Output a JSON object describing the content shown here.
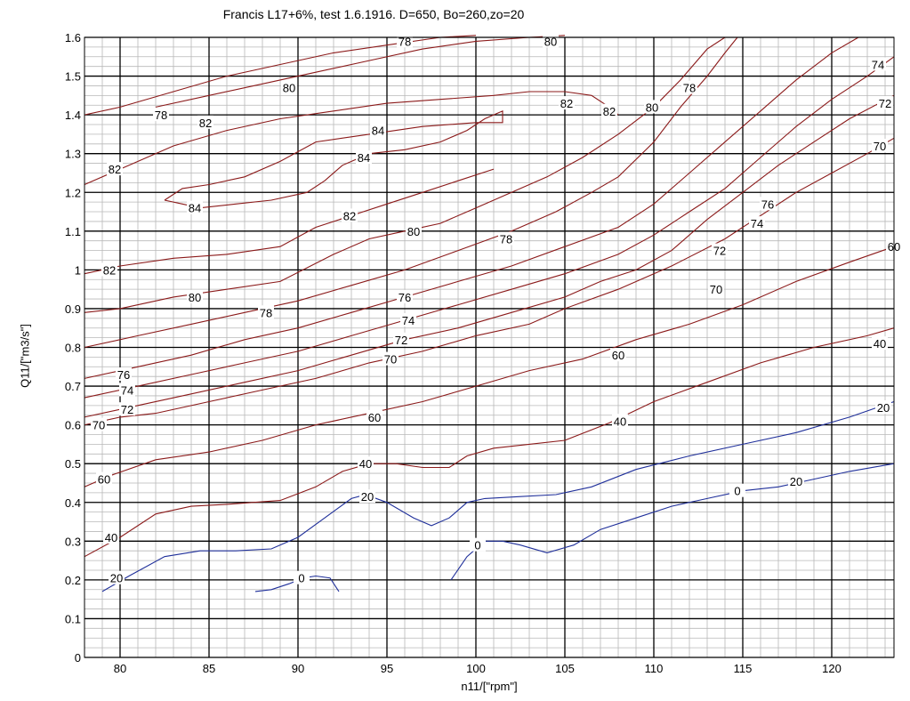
{
  "chart_data": {
    "type": "line",
    "title": "Francis L17+6%, test 1.6.1916. D=650, Bo=260,zo=20",
    "xlabel": "n11/[\"rpm\"]",
    "ylabel": "Q11/[\"m3/s\"]",
    "xlim": [
      78,
      123.5
    ],
    "ylim": [
      0,
      1.6
    ],
    "xticks": [
      80,
      85,
      90,
      95,
      100,
      105,
      110,
      115,
      120
    ],
    "yticks": [
      0,
      0.1,
      0.2,
      0.3,
      0.4,
      0.5,
      0.6,
      0.7,
      0.8,
      0.9,
      1,
      1.1,
      1.2,
      1.3,
      1.4,
      1.5,
      1.6
    ],
    "grid": "major and minor",
    "colors": {
      "efficiency": "#8b1a1a",
      "low": "#1f2f9a"
    },
    "series": [
      {
        "name": "0",
        "color": "#1f2f9a",
        "labels": [
          [
            90.2,
            0.205
          ]
        ],
        "x": [
          87.6,
          88.5,
          89.5,
          90.3,
          91.0,
          91.8,
          92.3
        ],
        "y": [
          0.17,
          0.175,
          0.19,
          0.205,
          0.21,
          0.205,
          0.17
        ]
      },
      {
        "name": "0",
        "color": "#1f2f9a",
        "labels": [
          [
            100.1,
            0.29
          ],
          [
            114.7,
            0.43
          ]
        ],
        "x": [
          98.6,
          99.5,
          100.5,
          101.5,
          102.5,
          104.0,
          105.5,
          107.0,
          109.0,
          111.0,
          113.0,
          115.0,
          117.0,
          119.0,
          121.0,
          123.5
        ],
        "y": [
          0.2,
          0.26,
          0.3,
          0.3,
          0.29,
          0.27,
          0.29,
          0.33,
          0.36,
          0.39,
          0.41,
          0.43,
          0.44,
          0.46,
          0.48,
          0.5
        ]
      },
      {
        "name": "20",
        "color": "#1f2f9a",
        "labels": [
          [
            79.8,
            0.205
          ],
          [
            93.9,
            0.415
          ],
          [
            118.0,
            0.455
          ],
          [
            122.9,
            0.645
          ]
        ],
        "x": [
          79.0,
          80.5,
          82.5,
          84.5,
          86.5,
          88.5,
          90.0,
          91.5,
          93.0,
          93.8,
          95.0,
          96.5,
          97.5,
          98.5,
          99.5,
          100.5,
          102.5,
          104.5,
          106.5,
          109.0,
          112.0,
          115.0,
          118.0,
          121.0,
          123.5
        ],
        "y": [
          0.17,
          0.21,
          0.26,
          0.275,
          0.275,
          0.28,
          0.31,
          0.36,
          0.41,
          0.42,
          0.4,
          0.36,
          0.34,
          0.36,
          0.4,
          0.41,
          0.415,
          0.42,
          0.44,
          0.485,
          0.52,
          0.55,
          0.58,
          0.62,
          0.66
        ]
      },
      {
        "name": "40",
        "color": "#8b1a1a",
        "labels": [
          [
            79.5,
            0.31
          ],
          [
            93.8,
            0.5
          ],
          [
            108.1,
            0.61
          ],
          [
            122.7,
            0.81
          ]
        ],
        "x": [
          78.0,
          80.0,
          82.0,
          84.0,
          86.0,
          89.0,
          91.0,
          92.5,
          94.0,
          95.5,
          97.0,
          98.5,
          99.5,
          101.0,
          103.0,
          105.0,
          107.5,
          110.0,
          113.0,
          116.0,
          119.0,
          122.0,
          123.5
        ],
        "y": [
          0.26,
          0.31,
          0.37,
          0.39,
          0.395,
          0.405,
          0.44,
          0.48,
          0.5,
          0.5,
          0.49,
          0.49,
          0.52,
          0.54,
          0.55,
          0.56,
          0.605,
          0.66,
          0.71,
          0.76,
          0.8,
          0.83,
          0.85
        ]
      },
      {
        "name": "60",
        "color": "#8b1a1a",
        "labels": [
          [
            79.1,
            0.46
          ],
          [
            94.3,
            0.62
          ],
          [
            108.0,
            0.78
          ],
          [
            123.5,
            1.06
          ]
        ],
        "x": [
          78.0,
          79.5,
          82.0,
          85.0,
          88.0,
          91.0,
          94.0,
          97.0,
          100.0,
          103.0,
          106.0,
          109.0,
          112.0,
          115.0,
          118.0,
          121.0,
          123.5
        ],
        "y": [
          0.44,
          0.47,
          0.51,
          0.53,
          0.56,
          0.6,
          0.63,
          0.66,
          0.7,
          0.74,
          0.77,
          0.82,
          0.86,
          0.91,
          0.97,
          1.02,
          1.06
        ]
      },
      {
        "name": "70",
        "color": "#8b1a1a",
        "labels": [
          [
            78.8,
            0.6
          ],
          [
            95.2,
            0.77
          ],
          [
            113.5,
            0.95
          ],
          [
            122.7,
            1.32
          ]
        ],
        "x": [
          78.0,
          80.0,
          82.0,
          85.0,
          88.0,
          91.0,
          94.0,
          97.0,
          100.0,
          103.0,
          105.0,
          108.0,
          111.0,
          114.0,
          116.0,
          118.0,
          120.0,
          122.0,
          123.5
        ],
        "y": [
          0.6,
          0.62,
          0.63,
          0.66,
          0.69,
          0.72,
          0.76,
          0.79,
          0.83,
          0.86,
          0.9,
          0.95,
          1.01,
          1.08,
          1.14,
          1.2,
          1.25,
          1.3,
          1.34
        ]
      },
      {
        "name": "72",
        "color": "#8b1a1a",
        "labels": [
          [
            80.4,
            0.64
          ],
          [
            95.8,
            0.82
          ],
          [
            113.7,
            1.05
          ],
          [
            123.0,
            1.43
          ]
        ],
        "x": [
          78.0,
          81.0,
          84.0,
          87.0,
          90.0,
          93.0,
          96.0,
          99.0,
          102.0,
          105.0,
          107.0,
          109.0,
          111.0,
          113.0,
          115.0,
          117.0,
          119.0,
          121.0,
          123.5
        ],
        "y": [
          0.62,
          0.65,
          0.68,
          0.71,
          0.74,
          0.78,
          0.82,
          0.85,
          0.89,
          0.93,
          0.97,
          1.0,
          1.05,
          1.13,
          1.2,
          1.27,
          1.33,
          1.39,
          1.45
        ]
      },
      {
        "name": "74",
        "color": "#8b1a1a",
        "labels": [
          [
            80.4,
            0.69
          ],
          [
            96.2,
            0.87
          ],
          [
            115.8,
            1.12
          ],
          [
            122.6,
            1.53
          ]
        ],
        "x": [
          78.0,
          81.0,
          84.0,
          87.0,
          90.0,
          93.0,
          96.0,
          99.0,
          102.0,
          105.0,
          108.0,
          110.0,
          112.0,
          114.0,
          116.0,
          118.0,
          120.0,
          122.0,
          123.5
        ],
        "y": [
          0.67,
          0.7,
          0.73,
          0.76,
          0.79,
          0.83,
          0.87,
          0.91,
          0.95,
          0.99,
          1.04,
          1.09,
          1.15,
          1.21,
          1.29,
          1.37,
          1.44,
          1.5,
          1.55
        ]
      },
      {
        "name": "76",
        "color": "#8b1a1a",
        "labels": [
          [
            80.2,
            0.73
          ],
          [
            96.0,
            0.93
          ],
          [
            116.4,
            1.17
          ]
        ],
        "x": [
          78.0,
          81.0,
          84.0,
          87.0,
          90.0,
          93.0,
          96.0,
          99.0,
          102.0,
          105.0,
          108.0,
          110.0,
          112.0,
          114.0,
          116.0,
          118.0,
          120.0,
          121.5
        ],
        "y": [
          0.72,
          0.75,
          0.78,
          0.82,
          0.85,
          0.89,
          0.93,
          0.97,
          1.01,
          1.06,
          1.11,
          1.17,
          1.25,
          1.33,
          1.41,
          1.49,
          1.56,
          1.6
        ]
      },
      {
        "name": "78",
        "color": "#8b1a1a",
        "labels": [
          [
            88.2,
            0.89
          ],
          [
            101.7,
            1.08
          ],
          [
            112.0,
            1.47
          ],
          [
            82.3,
            1.4
          ],
          [
            96.0,
            1.59
          ]
        ],
        "x": [
          78.0,
          81.0,
          84.0,
          87.0,
          90.0,
          93.0,
          96.0,
          99.0,
          102.0,
          104.5,
          106.5,
          108.0,
          110.0,
          111.5,
          113.0,
          114.0,
          114.7
        ],
        "y": [
          0.8,
          0.83,
          0.86,
          0.89,
          0.92,
          0.96,
          1.0,
          1.05,
          1.1,
          1.15,
          1.2,
          1.24,
          1.33,
          1.42,
          1.5,
          1.56,
          1.6
        ]
      },
      {
        "name": "78",
        "color": "#8b1a1a",
        "labels": [],
        "x": [
          78.0,
          80.0,
          83.0,
          86.0,
          89.0,
          92.0,
          95.0,
          98.0,
          100.0
        ],
        "y": [
          1.4,
          1.42,
          1.46,
          1.5,
          1.53,
          1.56,
          1.58,
          1.6,
          1.605
        ]
      },
      {
        "name": "80",
        "color": "#8b1a1a",
        "labels": [
          [
            84.2,
            0.93
          ],
          [
            96.5,
            1.1
          ],
          [
            109.9,
            1.42
          ],
          [
            89.5,
            1.47
          ],
          [
            104.2,
            1.59
          ]
        ],
        "x": [
          78.0,
          80.0,
          83.0,
          86.0,
          89.0,
          92.0,
          94.0,
          96.0,
          98.0,
          100.0,
          102.0,
          104.0,
          106.0,
          108.0,
          110.0,
          111.5,
          113.0,
          114.0
        ],
        "y": [
          0.89,
          0.9,
          0.93,
          0.95,
          0.97,
          1.04,
          1.08,
          1.1,
          1.12,
          1.16,
          1.2,
          1.24,
          1.29,
          1.35,
          1.42,
          1.49,
          1.57,
          1.6
        ]
      },
      {
        "name": "80",
        "color": "#8b1a1a",
        "labels": [],
        "x": [
          82.0,
          85.0,
          88.0,
          91.0,
          94.0,
          97.0,
          100.0,
          103.0,
          105.0
        ],
        "y": [
          1.42,
          1.45,
          1.48,
          1.51,
          1.54,
          1.57,
          1.59,
          1.6,
          1.605
        ]
      },
      {
        "name": "82",
        "color": "#8b1a1a",
        "labels": [
          [
            79.4,
            1.0
          ],
          [
            92.9,
            1.14
          ],
          [
            79.7,
            1.26
          ],
          [
            84.8,
            1.38
          ],
          [
            105.1,
            1.43
          ],
          [
            107.5,
            1.41
          ]
        ],
        "x": [
          78.0,
          80.0,
          83.0,
          86.0,
          89.0,
          91.0,
          93.0,
          95.0,
          97.0,
          99.0,
          101.0
        ],
        "y": [
          0.99,
          1.01,
          1.03,
          1.04,
          1.06,
          1.11,
          1.14,
          1.17,
          1.2,
          1.23,
          1.26
        ]
      },
      {
        "name": "82",
        "color": "#8b1a1a",
        "labels": [],
        "x": [
          78.0,
          80.0,
          83.0,
          86.0,
          89.0,
          92.0,
          95.0,
          98.0,
          101.0,
          103.0,
          105.0,
          106.5,
          107.5,
          108.0
        ],
        "y": [
          1.22,
          1.26,
          1.32,
          1.36,
          1.39,
          1.41,
          1.43,
          1.44,
          1.45,
          1.46,
          1.46,
          1.45,
          1.42,
          1.4
        ]
      },
      {
        "name": "84",
        "color": "#8b1a1a",
        "labels": [
          [
            84.2,
            1.16
          ],
          [
            94.5,
            1.36
          ],
          [
            93.7,
            1.29
          ]
        ],
        "x": [
          82.5,
          83.5,
          84.5,
          86.5,
          88.5,
          90.5,
          91.5,
          92.5,
          94.0,
          96.0,
          98.0,
          99.5,
          100.5,
          101.0,
          101.5,
          101.5,
          100.0,
          97.0,
          94.0,
          91.0,
          89.0,
          87.0,
          85.0,
          83.5,
          82.5
        ],
        "y": [
          1.18,
          1.17,
          1.16,
          1.17,
          1.18,
          1.2,
          1.23,
          1.27,
          1.3,
          1.31,
          1.33,
          1.36,
          1.39,
          1.4,
          1.41,
          1.38,
          1.38,
          1.37,
          1.35,
          1.33,
          1.28,
          1.24,
          1.22,
          1.21,
          1.18
        ]
      }
    ]
  }
}
